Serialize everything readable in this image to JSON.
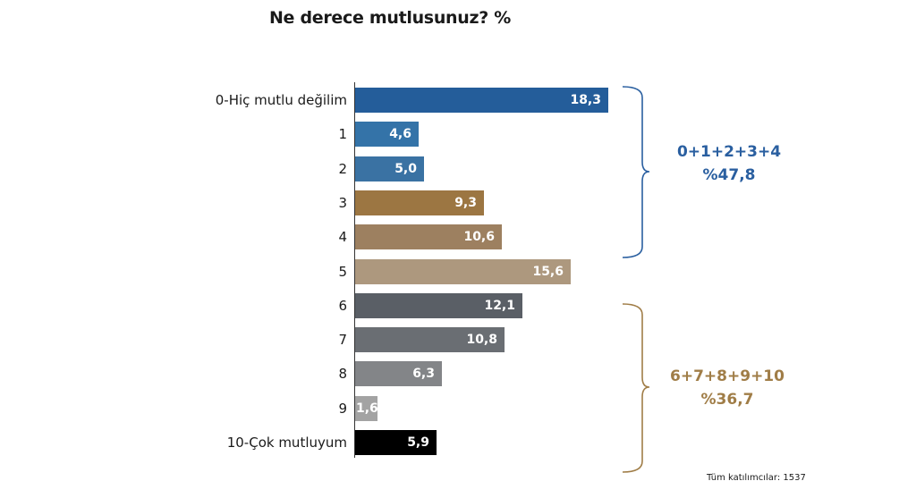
{
  "title": "Ne derece mutlusunuz? %",
  "footnote": "Tüm katılımcılar: 1537",
  "groups": [
    {
      "label_line1": "0+1+2+3+4",
      "label_line2": "%47,8",
      "color": "#2a5fa0"
    },
    {
      "label_line1": "6+7+8+9+10",
      "label_line2": "%36,7",
      "color": "#a07d47"
    }
  ],
  "bars": [
    {
      "label": "0-Hiç mutlu değilim",
      "value": 18.3,
      "display": "18,3",
      "color": "#245d9a"
    },
    {
      "label": "1",
      "value": 4.6,
      "display": "4,6",
      "color": "#3473a8"
    },
    {
      "label": "2",
      "value": 5.0,
      "display": "5,0",
      "color": "#3a72a3"
    },
    {
      "label": "3",
      "value": 9.3,
      "display": "9,3",
      "color": "#9c7642"
    },
    {
      "label": "4",
      "value": 10.6,
      "display": "10,6",
      "color": "#9d8060"
    },
    {
      "label": "5",
      "value": 15.6,
      "display": "15,6",
      "color": "#ad987e"
    },
    {
      "label": "6",
      "value": 12.1,
      "display": "12,1",
      "color": "#5a5f66"
    },
    {
      "label": "7",
      "value": 10.8,
      "display": "10,8",
      "color": "#6a6e73"
    },
    {
      "label": "8",
      "value": 6.3,
      "display": "6,3",
      "color": "#838588"
    },
    {
      "label": "9",
      "value": 1.6,
      "display": "1,6",
      "color": "#a3a3a3"
    },
    {
      "label": "10-Çok mutluyum",
      "value": 5.9,
      "display": "5,9",
      "color": "#000000"
    }
  ],
  "chart_data": {
    "type": "bar",
    "orientation": "horizontal",
    "title": "Ne derece mutlusunuz? %",
    "categories": [
      "0-Hiç mutlu değilim",
      "1",
      "2",
      "3",
      "4",
      "5",
      "6",
      "7",
      "8",
      "9",
      "10-Çok mutluyum"
    ],
    "values": [
      18.3,
      4.6,
      5.0,
      9.3,
      10.6,
      15.6,
      12.1,
      10.8,
      6.3,
      1.6,
      5.9
    ],
    "xlabel": "",
    "ylabel": "",
    "grid": false,
    "legend": null,
    "annotations": [
      {
        "text": "0+1+2+3+4 %47,8",
        "spans": [
          "0-Hiç mutlu değilim",
          "1",
          "2",
          "3",
          "4"
        ]
      },
      {
        "text": "6+7+8+9+10 %36,7",
        "spans": [
          "6",
          "7",
          "8",
          "9",
          "10-Çok mutluyum"
        ]
      },
      {
        "text": "Tüm katılımcılar: 1537",
        "position": "bottom-right"
      }
    ]
  }
}
